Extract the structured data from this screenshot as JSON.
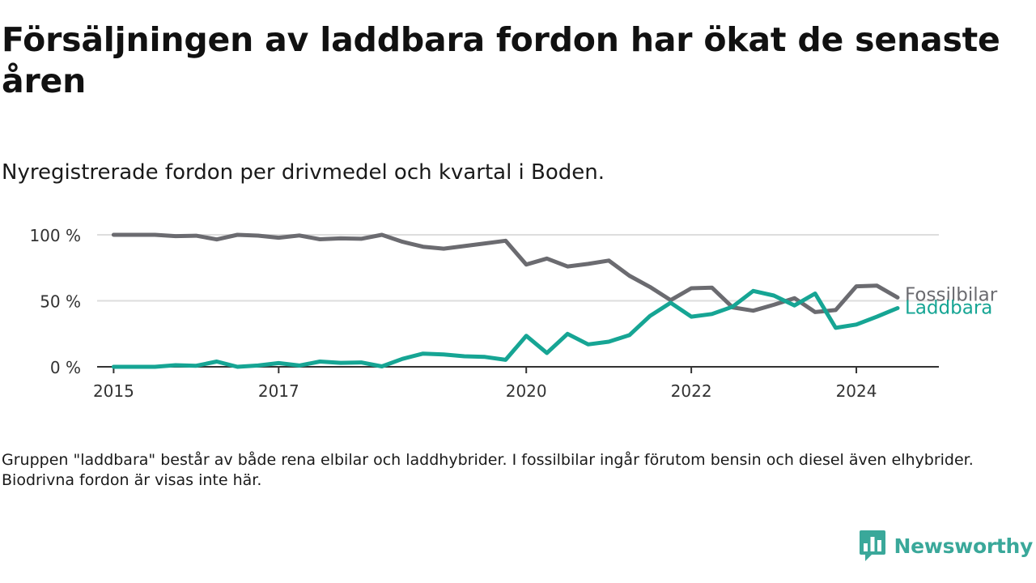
{
  "title": "Försäljningen av laddbara fordon har ökat de senaste åren",
  "subtitle": "Nyregistrerade fordon per drivmedel och kvartal i Boden.",
  "note": "Gruppen \"laddbara\" består av både rena elbilar och laddhybrider. I fossilbilar ingår förutom bensin och diesel även elhybrider. Biodrivna fordon är visas inte här.",
  "brand": {
    "name": "Newsworthy",
    "color": "#3aa89a"
  },
  "chart_data": {
    "type": "line",
    "title": "Försäljningen av laddbara fordon har ökat de senaste åren",
    "xlabel": "",
    "ylabel": "",
    "x": [
      2015.0,
      2015.25,
      2015.5,
      2015.75,
      2016.0,
      2016.25,
      2016.5,
      2016.75,
      2017.0,
      2017.25,
      2017.5,
      2017.75,
      2018.0,
      2018.25,
      2018.5,
      2018.75,
      2019.0,
      2019.25,
      2019.5,
      2019.75,
      2020.0,
      2020.25,
      2020.5,
      2020.75,
      2021.0,
      2021.25,
      2021.5,
      2021.75,
      2022.0,
      2022.25,
      2022.5,
      2022.75,
      2023.0,
      2023.25,
      2023.5,
      2023.75,
      2024.0,
      2024.25,
      2024.5
    ],
    "xlim": [
      2014.8,
      2025.0
    ],
    "ylim": [
      0,
      100
    ],
    "x_ticks": [
      {
        "value": 2015,
        "label": "2015"
      },
      {
        "value": 2017,
        "label": "2017"
      },
      {
        "value": 2020,
        "label": "2020"
      },
      {
        "value": 2022,
        "label": "2022"
      },
      {
        "value": 2024,
        "label": "2024"
      }
    ],
    "y_ticks": [
      {
        "value": 0,
        "label": "0 %"
      },
      {
        "value": 50,
        "label": "50 %"
      },
      {
        "value": 100,
        "label": "100 %"
      }
    ],
    "grid": true,
    "series": [
      {
        "name": "Fossilbilar",
        "color": "#6b6b70",
        "values": [
          100,
          100,
          100,
          99,
          99.3,
          96.5,
          100,
          99.4,
          97.8,
          99.5,
          96.6,
          97.3,
          97,
          100,
          94.7,
          91,
          89.5,
          91.5,
          93.5,
          95.5,
          77.5,
          82,
          76,
          78,
          80.5,
          69,
          60.5,
          50.5,
          59.5,
          60,
          45,
          42.5,
          47,
          52,
          41.5,
          43,
          61,
          61.5,
          52.5
        ]
      },
      {
        "name": "Laddbara",
        "color": "#16a594",
        "values": [
          0,
          0,
          0,
          1.2,
          0.8,
          4,
          0,
          1,
          2.8,
          1,
          4,
          3,
          3.3,
          0.3,
          6,
          10,
          9.3,
          8,
          7.5,
          5.3,
          23.5,
          10.5,
          25,
          17,
          19,
          24,
          38.5,
          48.5,
          38,
          40,
          45.5,
          57.5,
          54,
          46.5,
          55.5,
          29.5,
          32,
          38,
          44.5
        ]
      }
    ]
  }
}
